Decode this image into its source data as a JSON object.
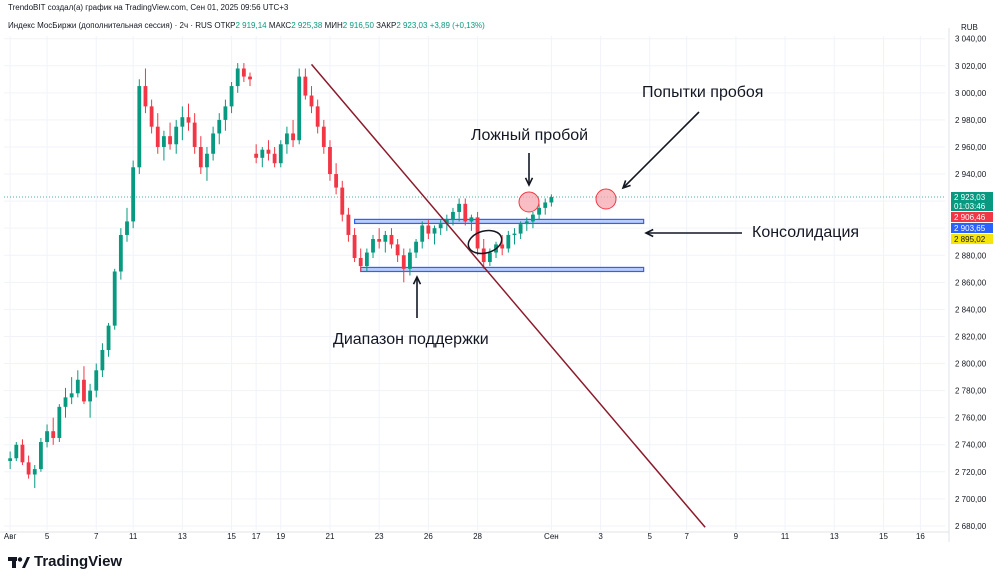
{
  "header": {
    "credit": "TrendoBIT создал(а) график на TradingView.com, Сен 01, 2025 09:56 UTC+3",
    "symbol": "Индекс МосБиржи (дополнительная сессия) · 2ч · RUS",
    "open_label": "ОТКР",
    "open_value": "2 919,14",
    "high_label": "МАКС",
    "high_value": "2 925,38",
    "low_label": "МИН",
    "low_value": "2 916,50",
    "close_label": "ЗАКР",
    "close_value": "2 923,03",
    "change": "+3,89 (+0,13%)"
  },
  "footer": {
    "brand": "TradingView"
  },
  "annotations": {
    "breakout_attempts": "Попытки пробоя",
    "false_breakout": "Ложный пробой",
    "consolidation": "Консолидация",
    "support_range": "Диапазон поддержки"
  },
  "colors": {
    "up": "#089981",
    "down": "#f23645",
    "support_band": "#2962ff",
    "trendline": "#8b1a2b",
    "circle_fill": "#f7a8b0",
    "grid": "#f0f3fa"
  },
  "chart_data": {
    "type": "candlestick",
    "currency": "RUB",
    "y_ticks": [
      2680,
      2700,
      2720,
      2740,
      2760,
      2780,
      2800,
      2820,
      2840,
      2860,
      2880,
      2900,
      2920,
      2940,
      2960,
      2980,
      3000,
      3020,
      3040
    ],
    "y_tick_labels": [
      "2 680,00",
      "2 700,00",
      "2 720,00",
      "2 740,00",
      "2 760,00",
      "2 780,00",
      "2 800,00",
      "2 820,00",
      "2 840,00",
      "2 860,00",
      "2 880,00",
      "2 900,00",
      "2 920,00",
      "2 940,00",
      "2 960,00",
      "2 980,00",
      "3 000,00",
      "3 020,00",
      "3 040,00"
    ],
    "ylim": [
      2677,
      3042
    ],
    "x_ticks": [
      {
        "label": "Авг",
        "x": 0
      },
      {
        "label": "5",
        "x": 6
      },
      {
        "label": "7",
        "x": 14
      },
      {
        "label": "11",
        "x": 20
      },
      {
        "label": "13",
        "x": 28
      },
      {
        "label": "15",
        "x": 36
      },
      {
        "label": "17",
        "x": 40
      },
      {
        "label": "19",
        "x": 44
      },
      {
        "label": "21",
        "x": 52
      },
      {
        "label": "23",
        "x": 60
      },
      {
        "label": "26",
        "x": 68
      },
      {
        "label": "28",
        "x": 76
      },
      {
        "label": "Сен",
        "x": 88
      },
      {
        "label": "3",
        "x": 96
      },
      {
        "label": "5",
        "x": 104
      },
      {
        "label": "7",
        "x": 110
      },
      {
        "label": "9",
        "x": 118
      },
      {
        "label": "11",
        "x": 126
      },
      {
        "label": "13",
        "x": 134
      },
      {
        "label": "15",
        "x": 142
      },
      {
        "label": "16",
        "x": 148
      }
    ],
    "xlim": [
      -1,
      152
    ],
    "price_labels": [
      {
        "value": "2 923,03",
        "sub": "01:03:46",
        "price": 2923.03,
        "color": "#089981"
      },
      {
        "value": "2 906,46",
        "price": 2906.46,
        "color": "#f23645"
      },
      {
        "value": "2 903,65",
        "price": 2903.65,
        "color": "#2962ff"
      },
      {
        "value": "2 895,02",
        "price": 2895.02,
        "color": "#f5e50a"
      }
    ],
    "current_price": 2923.03,
    "resistance": {
      "x0": 56,
      "x1": 103,
      "low": 2903.5,
      "high": 2906.5
    },
    "support": {
      "x0": 57,
      "x1": 103,
      "low": 2868,
      "high": 2871
    },
    "trendline": {
      "x0": 49,
      "p0": 3021,
      "x1": 113,
      "p1": 2679
    },
    "candles": [
      [
        2728,
        2735,
        2722,
        2730
      ],
      [
        2730,
        2742,
        2728,
        2740
      ],
      [
        2740,
        2744,
        2725,
        2727
      ],
      [
        2727,
        2732,
        2715,
        2718
      ],
      [
        2718,
        2725,
        2708,
        2722
      ],
      [
        2722,
        2745,
        2720,
        2742
      ],
      [
        2742,
        2755,
        2738,
        2750
      ],
      [
        2750,
        2760,
        2740,
        2745
      ],
      [
        2745,
        2770,
        2742,
        2768
      ],
      [
        2768,
        2782,
        2760,
        2775
      ],
      [
        2775,
        2790,
        2770,
        2778
      ],
      [
        2778,
        2795,
        2775,
        2788
      ],
      [
        2788,
        2798,
        2770,
        2772
      ],
      [
        2772,
        2785,
        2760,
        2780
      ],
      [
        2780,
        2800,
        2775,
        2795
      ],
      [
        2795,
        2815,
        2790,
        2810
      ],
      [
        2810,
        2830,
        2805,
        2828
      ],
      [
        2828,
        2870,
        2825,
        2868
      ],
      [
        2868,
        2900,
        2862,
        2895
      ],
      [
        2895,
        2915,
        2890,
        2905
      ],
      [
        2905,
        2950,
        2900,
        2945
      ],
      [
        2945,
        3010,
        2940,
        3005
      ],
      [
        3005,
        3018,
        2985,
        2990
      ],
      [
        2990,
        2995,
        2970,
        2975
      ],
      [
        2975,
        2985,
        2955,
        2960
      ],
      [
        2960,
        2972,
        2950,
        2968
      ],
      [
        2968,
        2978,
        2958,
        2962
      ],
      [
        2962,
        2980,
        2955,
        2975
      ],
      [
        2975,
        2990,
        2965,
        2982
      ],
      [
        2982,
        2992,
        2972,
        2978
      ],
      [
        2978,
        2985,
        2955,
        2960
      ],
      [
        2960,
        2968,
        2940,
        2945
      ],
      [
        2945,
        2960,
        2935,
        2955
      ],
      [
        2955,
        2975,
        2950,
        2970
      ],
      [
        2970,
        2985,
        2962,
        2980
      ],
      [
        2980,
        2995,
        2972,
        2990
      ],
      [
        2990,
        3008,
        2985,
        3005
      ],
      [
        3005,
        3022,
        3000,
        3018
      ],
      [
        3018,
        3022,
        3008,
        3012
      ],
      [
        3012,
        3015,
        3005,
        3010
      ],
      [
        2955,
        2962,
        2948,
        2952
      ],
      [
        2952,
        2960,
        2945,
        2958
      ],
      [
        2958,
        2965,
        2950,
        2955
      ],
      [
        2955,
        2960,
        2945,
        2948
      ],
      [
        2948,
        2965,
        2945,
        2962
      ],
      [
        2962,
        2975,
        2955,
        2970
      ],
      [
        2970,
        2980,
        2960,
        2965
      ],
      [
        2965,
        3018,
        2962,
        3012
      ],
      [
        3012,
        3018,
        2995,
        2998
      ],
      [
        2998,
        3005,
        2985,
        2990
      ],
      [
        2990,
        2995,
        2970,
        2975
      ],
      [
        2975,
        2980,
        2955,
        2960
      ],
      [
        2960,
        2965,
        2935,
        2940
      ],
      [
        2940,
        2948,
        2925,
        2930
      ],
      [
        2930,
        2935,
        2905,
        2910
      ],
      [
        2910,
        2915,
        2890,
        2895
      ],
      [
        2895,
        2900,
        2875,
        2878
      ],
      [
        2878,
        2885,
        2868,
        2872
      ],
      [
        2872,
        2885,
        2868,
        2882
      ],
      [
        2882,
        2895,
        2878,
        2892
      ],
      [
        2892,
        2900,
        2885,
        2890
      ],
      [
        2890,
        2898,
        2882,
        2895
      ],
      [
        2895,
        2900,
        2885,
        2888
      ],
      [
        2888,
        2892,
        2875,
        2880
      ],
      [
        2880,
        2885,
        2860,
        2870
      ],
      [
        2870,
        2885,
        2865,
        2882
      ],
      [
        2882,
        2892,
        2878,
        2890
      ],
      [
        2890,
        2905,
        2885,
        2902
      ],
      [
        2902,
        2906,
        2892,
        2896
      ],
      [
        2896,
        2902,
        2888,
        2900
      ],
      [
        2900,
        2906,
        2895,
        2903
      ],
      [
        2903,
        2910,
        2898,
        2906
      ],
      [
        2906,
        2915,
        2902,
        2912
      ],
      [
        2912,
        2922,
        2905,
        2918
      ],
      [
        2918,
        2922,
        2902,
        2905
      ],
      [
        2905,
        2910,
        2898,
        2908
      ],
      [
        2908,
        2912,
        2880,
        2885
      ],
      [
        2885,
        2892,
        2870,
        2875
      ],
      [
        2875,
        2885,
        2872,
        2882
      ],
      [
        2882,
        2890,
        2878,
        2888
      ],
      [
        2888,
        2895,
        2880,
        2885
      ],
      [
        2885,
        2898,
        2882,
        2895
      ],
      [
        2895,
        2900,
        2888,
        2896
      ],
      [
        2896,
        2905,
        2892,
        2903
      ],
      [
        2903,
        2908,
        2898,
        2905
      ],
      [
        2905,
        2912,
        2900,
        2910
      ],
      [
        2910,
        2918,
        2906,
        2915
      ],
      [
        2915,
        2922,
        2910,
        2919
      ],
      [
        2919,
        2925,
        2916,
        2923
      ]
    ]
  }
}
